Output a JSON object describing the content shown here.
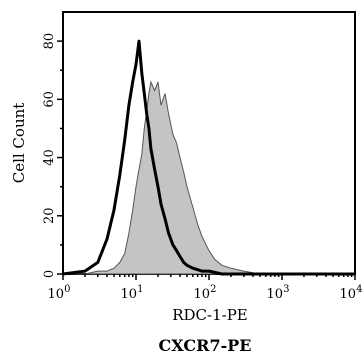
{
  "chart_data": {
    "type": "area",
    "title": "",
    "xlabel": "RDC-1-PE",
    "ylabel": "Cell Count",
    "caption": "CXCR7-PE",
    "xscale": "log",
    "xlim": [
      1,
      10000
    ],
    "ylim": [
      0,
      90
    ],
    "x_tick_labels": [
      {
        "base": "10",
        "exp": "0"
      },
      {
        "base": "10",
        "exp": "1"
      },
      {
        "base": "10",
        "exp": "2"
      },
      {
        "base": "10",
        "exp": "3"
      },
      {
        "base": "10",
        "exp": "4"
      }
    ],
    "y_tick_labels": [
      "0",
      "20",
      "40",
      "60",
      "80"
    ],
    "grid": false,
    "series": [
      {
        "style": "filled-gray-thin-outline",
        "x": [
          1,
          2,
          3,
          4,
          5,
          6,
          7,
          8,
          9,
          10,
          11,
          12,
          13,
          14,
          15,
          16,
          18,
          20,
          22,
          25,
          28,
          32,
          36,
          40,
          45,
          50,
          60,
          70,
          80,
          100,
          120,
          150,
          200,
          300,
          500,
          1000,
          10000
        ],
        "y": [
          0,
          0,
          1,
          1,
          2,
          4,
          7,
          14,
          22,
          30,
          36,
          41,
          50,
          56,
          62,
          66,
          63,
          66,
          58,
          62,
          55,
          48,
          45,
          40,
          35,
          30,
          23,
          17,
          13,
          8,
          5,
          3,
          2,
          1,
          0,
          0,
          0
        ]
      },
      {
        "style": "thick-black-line",
        "x": [
          1,
          2,
          3,
          4,
          5,
          6,
          7,
          8,
          9,
          10,
          11,
          12,
          13,
          14,
          15,
          16,
          18,
          20,
          22,
          25,
          28,
          32,
          36,
          40,
          45,
          50,
          60,
          80,
          100,
          150,
          200,
          500,
          1000,
          10000
        ],
        "y": [
          0,
          1,
          4,
          12,
          22,
          34,
          46,
          58,
          66,
          72,
          80,
          69,
          62,
          55,
          50,
          43,
          36,
          30,
          24,
          19,
          14,
          10,
          8,
          6,
          4,
          3,
          2,
          1,
          1,
          0,
          0,
          0,
          0,
          0
        ]
      }
    ]
  }
}
